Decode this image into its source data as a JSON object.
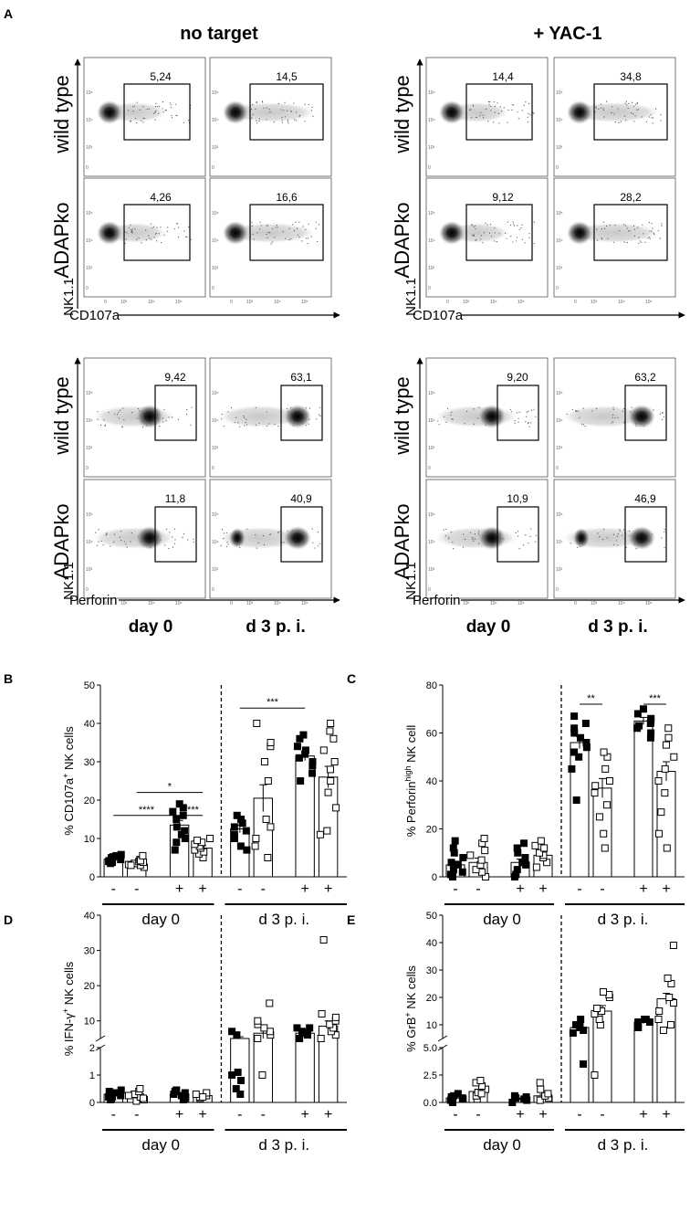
{
  "panel_a": {
    "letter": "A",
    "condition_headers": [
      "no target",
      "+ YAC-1"
    ],
    "row_labels": {
      "wt": "wild type",
      "ko": "ADAPko"
    },
    "y_axis_label": "NK1.1",
    "x_axis_labels": {
      "cd107a": "CD107a",
      "perforin": "Perforin"
    },
    "column_labels": [
      "day 0",
      "d 3 p. i."
    ],
    "tick_labels": [
      "0",
      "10³",
      "10⁴",
      "10⁵"
    ],
    "gate_values": {
      "cd107a": {
        "no_target": {
          "wt": [
            "5,24",
            "14,5"
          ],
          "ko": [
            "4,26",
            "16,6"
          ]
        },
        "yac1": {
          "wt": [
            "14,4",
            "34,8"
          ],
          "ko": [
            "9,12",
            "28,2"
          ]
        }
      },
      "perforin": {
        "no_target": {
          "wt": [
            "9,42",
            "63,1"
          ],
          "ko": [
            "11,8",
            "40,9"
          ]
        },
        "yac1": {
          "wt": [
            "9,20",
            "63,2"
          ],
          "ko": [
            "10,9",
            "46,9"
          ]
        }
      }
    }
  },
  "chart_data": [
    {
      "id": "B",
      "type": "bar",
      "letter": "B",
      "ylabel_parts": [
        "% CD107a",
        "+",
        " NK cells"
      ],
      "ylim": [
        0,
        50
      ],
      "yticks": [
        "0",
        "10",
        "20",
        "30",
        "40",
        "50"
      ],
      "categories": [
        "-",
        "-",
        "+",
        "+",
        "-",
        "-",
        "+",
        "+"
      ],
      "genotypes": [
        "wild type",
        "ADAPko",
        "wild type",
        "ADAPko",
        "wild type",
        "ADAPko",
        "wild type",
        "ADAPko"
      ],
      "group_labels": [
        "day 0",
        "d 3 p. i."
      ],
      "means": [
        4.6,
        3.8,
        13.5,
        7.5,
        12.5,
        20.5,
        31.5,
        26
      ],
      "sem": [
        0.4,
        0.4,
        1.2,
        0.6,
        1,
        3.5,
        1.2,
        2.8
      ],
      "points": [
        [
          3.5,
          4,
          4.5,
          5,
          5.5,
          4.2,
          5.8,
          3.8,
          4.8,
          5.2
        ],
        [
          2.5,
          3,
          3.5,
          4,
          4.5,
          3.2,
          3.8,
          4.2,
          5.5,
          3
        ],
        [
          7,
          9,
          10,
          11,
          12,
          13,
          15,
          16,
          17,
          18,
          19
        ],
        [
          5,
          6,
          6.5,
          7,
          7.5,
          8,
          8.5,
          9,
          9.5,
          10
        ],
        [
          7,
          8,
          10,
          11,
          12,
          13,
          14,
          15,
          16
        ],
        [
          5,
          8,
          10,
          13,
          15,
          25,
          30,
          34,
          35,
          40
        ],
        [
          25,
          27,
          29,
          30,
          31,
          32,
          33,
          34,
          36,
          37
        ],
        [
          11,
          12,
          18,
          22,
          25,
          28,
          30,
          33,
          36,
          38,
          40
        ]
      ],
      "significance": [
        {
          "from": 0,
          "to": 2,
          "label": "****",
          "y": 16
        },
        {
          "from": 2,
          "to": 3,
          "label": "****",
          "y": 16
        },
        {
          "from": 1,
          "to": 3,
          "label": "*",
          "y": 22
        },
        {
          "from": 4,
          "to": 6,
          "label": "***",
          "y": 44
        }
      ]
    },
    {
      "id": "C",
      "type": "bar",
      "letter": "C",
      "ylabel_parts": [
        "% Perforin",
        "high",
        " NK cell"
      ],
      "ylim": [
        0,
        80
      ],
      "yticks": [
        "0",
        "20",
        "40",
        "60",
        "80"
      ],
      "categories": [
        "-",
        "-",
        "+",
        "+",
        "-",
        "-",
        "+",
        "+"
      ],
      "genotypes": [
        "wild type",
        "ADAPko",
        "wild type",
        "ADAPko",
        "wild type",
        "ADAPko",
        "wild type",
        "ADAPko"
      ],
      "group_labels": [
        "day 0",
        "d 3 p. i."
      ],
      "means": [
        5,
        6,
        6,
        9,
        56,
        37,
        65,
        44
      ],
      "sem": [
        1.5,
        1.8,
        1.4,
        1.2,
        2.5,
        4,
        1.5,
        4
      ],
      "points": [
        [
          0,
          1,
          2,
          3,
          5,
          6,
          8,
          10,
          12,
          15
        ],
        [
          0,
          2,
          3,
          5,
          7,
          9,
          11,
          14,
          16
        ],
        [
          0,
          1,
          3,
          5,
          6,
          8,
          10,
          12,
          14
        ],
        [
          4,
          6,
          8,
          9,
          10,
          12,
          13,
          15
        ],
        [
          32,
          45,
          50,
          52,
          54,
          56,
          58,
          60,
          62,
          64,
          67
        ],
        [
          12,
          18,
          25,
          30,
          35,
          38,
          40,
          45,
          50,
          52
        ],
        [
          58,
          60,
          62,
          63,
          64,
          65,
          66,
          68,
          70
        ],
        [
          12,
          18,
          27,
          35,
          40,
          45,
          50,
          55,
          58,
          62
        ]
      ],
      "significance": [
        {
          "from": 4,
          "to": 5,
          "label": "**",
          "y": 72
        },
        {
          "from": 6,
          "to": 7,
          "label": "***",
          "y": 72
        }
      ]
    },
    {
      "id": "D",
      "type": "bar",
      "letter": "D",
      "ylabel_parts": [
        "% IFN-γ",
        "+",
        " NK cells"
      ],
      "broken_axis": true,
      "upper_range": [
        5,
        40
      ],
      "upper_ticks": [
        "10",
        "20",
        "30",
        "40"
      ],
      "upper_tick_values": [
        10,
        20,
        30,
        40
      ],
      "lower_range": [
        0,
        2
      ],
      "lower_ticks": [
        "0",
        "1",
        "2"
      ],
      "lower_tick_values": [
        0,
        1,
        2
      ],
      "categories": [
        "-",
        "-",
        "+",
        "+",
        "-",
        "-",
        "+",
        "+"
      ],
      "genotypes": [
        "wild type",
        "ADAPko",
        "wild type",
        "ADAPko",
        "wild type",
        "ADAPko",
        "wild type",
        "ADAPko"
      ],
      "group_labels": [
        "day 0",
        "d 3 p. i."
      ],
      "means": [
        0.3,
        0.25,
        0.3,
        0.25,
        4,
        6.5,
        6.5,
        8.5
      ],
      "sem": [
        0.05,
        0.05,
        0.04,
        0.03,
        1.5,
        2,
        0.8,
        1.5
      ],
      "points": [
        [
          0.1,
          0.2,
          0.25,
          0.3,
          0.35,
          0.4,
          0.45,
          0.2,
          0.15
        ],
        [
          0.05,
          0.1,
          0.2,
          0.3,
          0.4,
          0.5,
          0.25,
          0.15
        ],
        [
          0.1,
          0.2,
          0.3,
          0.4,
          0.45,
          0.35,
          0.25,
          0.15
        ],
        [
          0.15,
          0.2,
          0.25,
          0.3,
          0.35,
          0.2
        ],
        [
          0.3,
          0.5,
          0.8,
          1,
          1.1,
          6,
          7
        ],
        [
          1,
          5,
          6,
          7,
          8,
          9,
          10,
          15
        ],
        [
          5,
          6,
          6.5,
          7,
          8,
          8
        ],
        [
          5,
          6,
          7,
          8,
          9,
          10,
          11,
          12,
          33
        ]
      ],
      "significance": []
    },
    {
      "id": "E",
      "type": "bar",
      "letter": "E",
      "ylabel_parts": [
        "% GrB",
        "+",
        " NK cells"
      ],
      "broken_axis": true,
      "upper_range": [
        5,
        50
      ],
      "upper_ticks": [
        "10",
        "20",
        "30",
        "40",
        "50"
      ],
      "upper_tick_values": [
        10,
        20,
        30,
        40,
        50
      ],
      "lower_range": [
        0,
        5
      ],
      "lower_ticks": [
        "0.0",
        "2.5",
        "5.0"
      ],
      "lower_tick_values": [
        0,
        2.5,
        5
      ],
      "categories": [
        "-",
        "-",
        "+",
        "+",
        "-",
        "-",
        "+",
        "+"
      ],
      "genotypes": [
        "wild type",
        "ADAPko",
        "wild type",
        "ADAPko",
        "wild type",
        "ADAPko",
        "wild type",
        "ADAPko"
      ],
      "group_labels": [
        "day 0",
        "d 3 p. i."
      ],
      "means": [
        0.4,
        1,
        0.3,
        0.6,
        9,
        15,
        11,
        19.5
      ],
      "sem": [
        0.1,
        0.2,
        0.08,
        0.15,
        1,
        2,
        0.6,
        2
      ],
      "points": [
        [
          0,
          0.2,
          0.4,
          0.6,
          0.8,
          0.5,
          0.3
        ],
        [
          0.3,
          0.6,
          0.9,
          1.2,
          1.5,
          1.8,
          2,
          0.8
        ],
        [
          0,
          0.2,
          0.3,
          0.5,
          0.6,
          0.4
        ],
        [
          0.2,
          0.4,
          0.6,
          0.8,
          1.2,
          1.8
        ],
        [
          3.5,
          7,
          8,
          9,
          10,
          10,
          12
        ],
        [
          2.5,
          10,
          12,
          14,
          15,
          16,
          20,
          21,
          22
        ],
        [
          9,
          10,
          11,
          11,
          12,
          12
        ],
        [
          8,
          10,
          12,
          15,
          18,
          20,
          25,
          27,
          39
        ]
      ],
      "significance": []
    }
  ]
}
